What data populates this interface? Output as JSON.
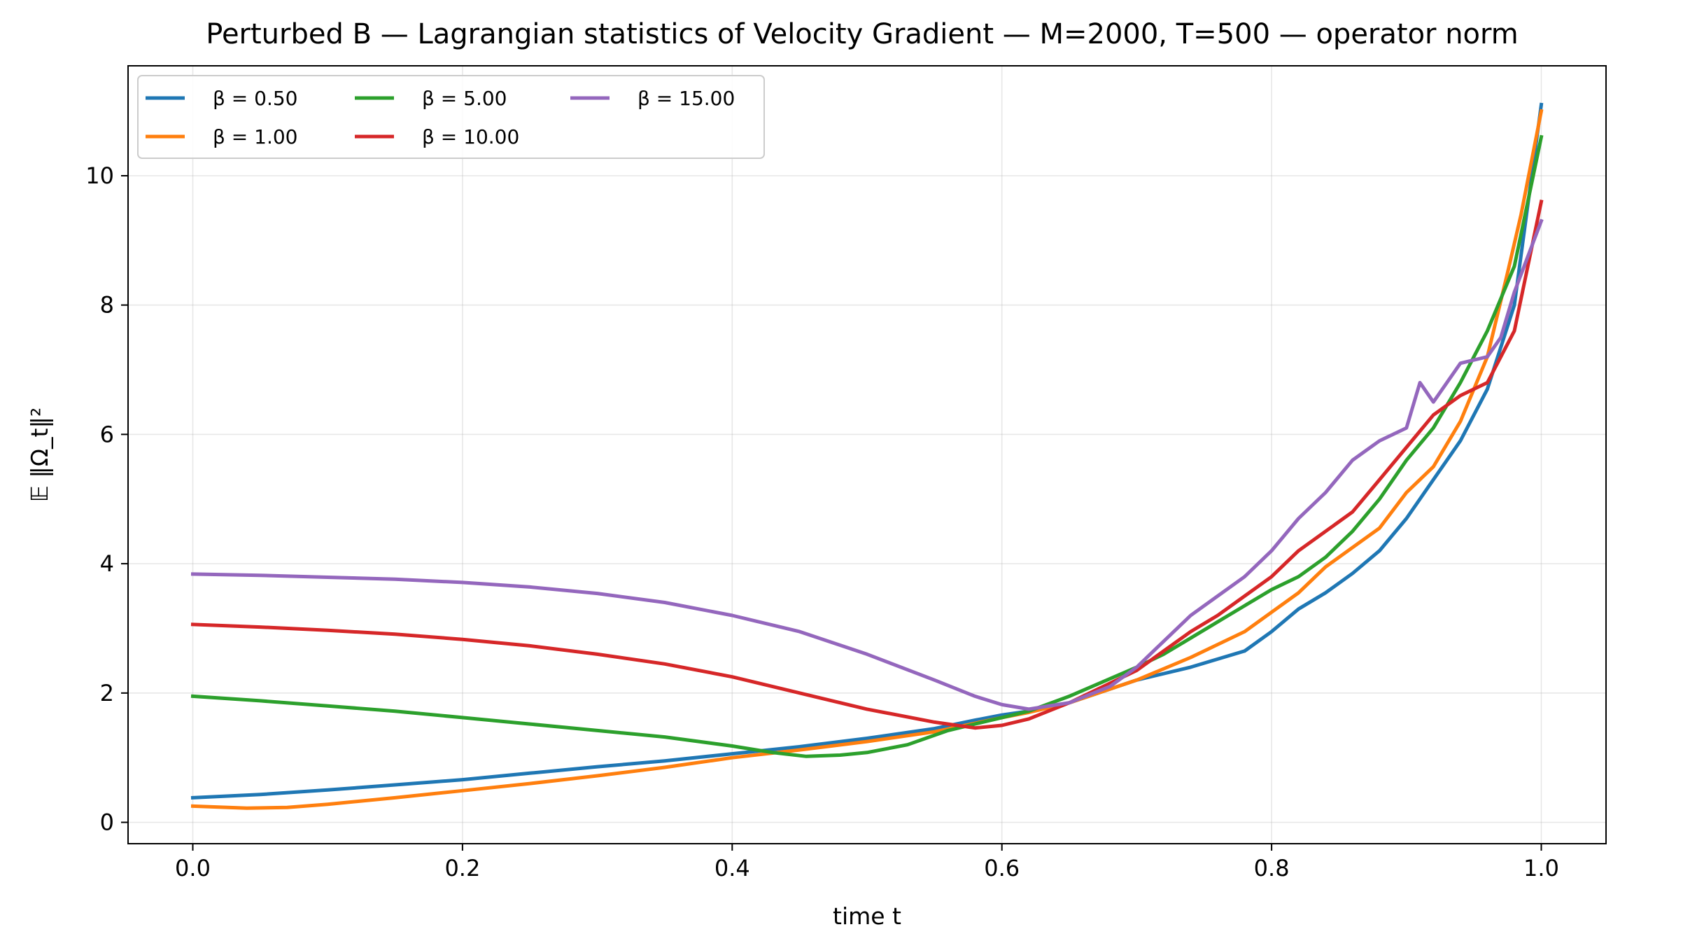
{
  "chart_data": {
    "type": "line",
    "title": "Perturbed B — Lagrangian statistics of Velocity Gradient — M=2000, T=500 — operator norm",
    "xlabel": "time t",
    "ylabel": "𝔼 ‖Ω_t‖²",
    "xlim": [
      -0.048,
      1.048
    ],
    "ylim": [
      -0.33,
      11.7
    ],
    "xticks": [
      0.0,
      0.2,
      0.4,
      0.6,
      0.8,
      1.0
    ],
    "xtick_labels": [
      "0.0",
      "0.2",
      "0.4",
      "0.6",
      "0.8",
      "1.0"
    ],
    "yticks": [
      0,
      2,
      4,
      6,
      8,
      10
    ],
    "ytick_labels": [
      "0",
      "2",
      "4",
      "6",
      "8",
      "10"
    ],
    "grid": true,
    "legend_position": "top-left",
    "series": [
      {
        "name": "β = 0.50",
        "color": "#1f77b4",
        "x": [
          0.0,
          0.05,
          0.1,
          0.15,
          0.2,
          0.25,
          0.3,
          0.35,
          0.4,
          0.45,
          0.5,
          0.55,
          0.58,
          0.6,
          0.62,
          0.65,
          0.7,
          0.74,
          0.78,
          0.8,
          0.82,
          0.84,
          0.86,
          0.88,
          0.9,
          0.92,
          0.94,
          0.96,
          0.98,
          1.0
        ],
        "y": [
          0.38,
          0.43,
          0.5,
          0.58,
          0.66,
          0.76,
          0.86,
          0.95,
          1.06,
          1.17,
          1.3,
          1.45,
          1.58,
          1.66,
          1.72,
          1.85,
          2.2,
          2.4,
          2.65,
          2.95,
          3.3,
          3.55,
          3.85,
          4.2,
          4.7,
          5.3,
          5.9,
          6.7,
          8.0,
          11.1
        ]
      },
      {
        "name": "β = 1.00",
        "color": "#ff7f0e",
        "x": [
          0.0,
          0.04,
          0.07,
          0.1,
          0.15,
          0.2,
          0.25,
          0.3,
          0.35,
          0.4,
          0.45,
          0.5,
          0.55,
          0.6,
          0.62,
          0.65,
          0.7,
          0.74,
          0.78,
          0.8,
          0.82,
          0.84,
          0.86,
          0.88,
          0.9,
          0.92,
          0.94,
          0.96,
          0.975,
          0.985,
          1.0
        ],
        "y": [
          0.25,
          0.22,
          0.23,
          0.28,
          0.38,
          0.49,
          0.6,
          0.72,
          0.85,
          1.0,
          1.12,
          1.25,
          1.4,
          1.62,
          1.7,
          1.85,
          2.2,
          2.55,
          2.95,
          3.25,
          3.55,
          3.95,
          4.25,
          4.55,
          5.1,
          5.5,
          6.2,
          7.2,
          8.5,
          9.4,
          11.0
        ]
      },
      {
        "name": "β = 5.00",
        "color": "#2ca02c",
        "x": [
          0.0,
          0.05,
          0.1,
          0.15,
          0.2,
          0.25,
          0.3,
          0.35,
          0.4,
          0.43,
          0.455,
          0.48,
          0.5,
          0.53,
          0.56,
          0.6,
          0.62,
          0.65,
          0.7,
          0.72,
          0.74,
          0.76,
          0.78,
          0.8,
          0.82,
          0.84,
          0.86,
          0.88,
          0.9,
          0.92,
          0.94,
          0.96,
          0.98,
          1.0
        ],
        "y": [
          1.95,
          1.88,
          1.8,
          1.72,
          1.62,
          1.52,
          1.42,
          1.32,
          1.18,
          1.08,
          1.02,
          1.04,
          1.08,
          1.2,
          1.42,
          1.62,
          1.72,
          1.95,
          2.4,
          2.6,
          2.85,
          3.1,
          3.35,
          3.6,
          3.8,
          4.1,
          4.5,
          5.0,
          5.6,
          6.1,
          6.8,
          7.6,
          8.6,
          10.6
        ]
      },
      {
        "name": "β = 10.00",
        "color": "#d62728",
        "x": [
          0.0,
          0.05,
          0.1,
          0.15,
          0.2,
          0.25,
          0.3,
          0.35,
          0.4,
          0.45,
          0.5,
          0.55,
          0.58,
          0.6,
          0.62,
          0.65,
          0.7,
          0.72,
          0.74,
          0.76,
          0.78,
          0.8,
          0.82,
          0.84,
          0.86,
          0.88,
          0.9,
          0.92,
          0.94,
          0.96,
          0.98,
          1.0
        ],
        "y": [
          3.06,
          3.02,
          2.97,
          2.91,
          2.83,
          2.73,
          2.6,
          2.45,
          2.25,
          2.0,
          1.75,
          1.55,
          1.46,
          1.5,
          1.6,
          1.85,
          2.35,
          2.65,
          2.95,
          3.2,
          3.5,
          3.8,
          4.2,
          4.5,
          4.8,
          5.3,
          5.8,
          6.3,
          6.6,
          6.8,
          7.6,
          9.6
        ]
      },
      {
        "name": "β = 15.00",
        "color": "#9467bd",
        "x": [
          0.0,
          0.05,
          0.1,
          0.15,
          0.2,
          0.25,
          0.3,
          0.35,
          0.4,
          0.45,
          0.5,
          0.55,
          0.58,
          0.6,
          0.62,
          0.65,
          0.68,
          0.7,
          0.72,
          0.74,
          0.76,
          0.78,
          0.8,
          0.82,
          0.84,
          0.86,
          0.88,
          0.9,
          0.91,
          0.92,
          0.94,
          0.96,
          0.97,
          0.98,
          1.0
        ],
        "y": [
          3.84,
          3.82,
          3.79,
          3.76,
          3.71,
          3.64,
          3.54,
          3.4,
          3.2,
          2.95,
          2.6,
          2.2,
          1.95,
          1.82,
          1.75,
          1.85,
          2.1,
          2.4,
          2.8,
          3.2,
          3.5,
          3.8,
          4.2,
          4.7,
          5.1,
          5.6,
          5.9,
          6.1,
          6.8,
          6.5,
          7.1,
          7.2,
          7.5,
          8.2,
          9.3
        ]
      }
    ]
  }
}
